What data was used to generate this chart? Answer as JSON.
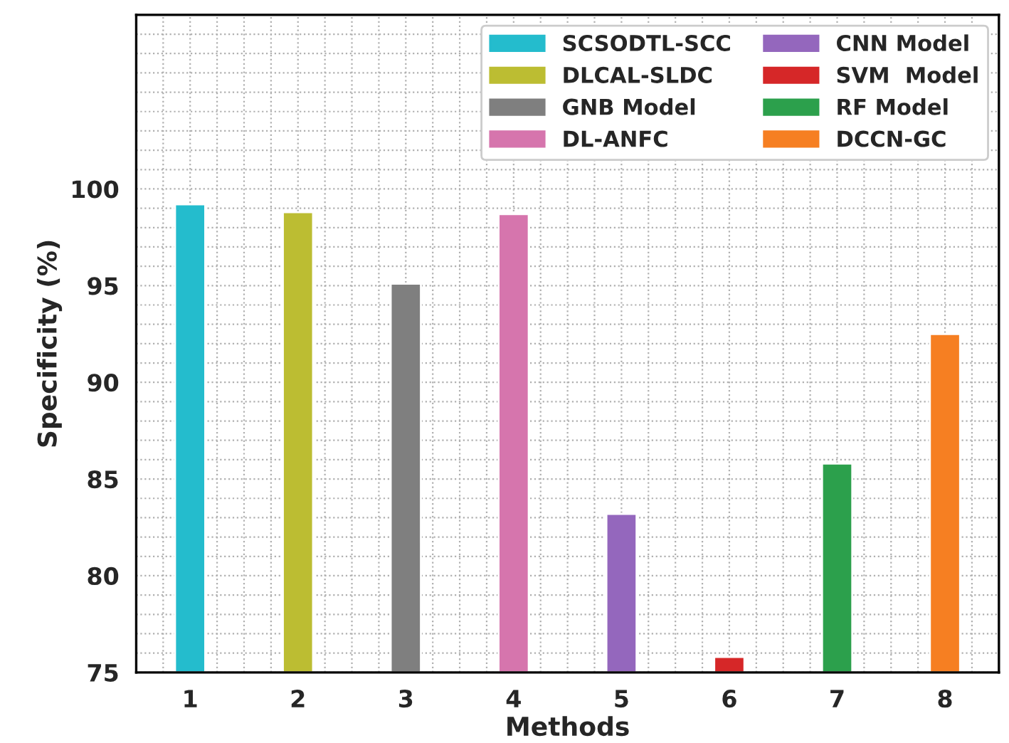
{
  "chart_data": {
    "type": "bar",
    "xlabel": "Methods",
    "ylabel": "Specificity (%)",
    "categories": [
      "1",
      "2",
      "3",
      "4",
      "5",
      "6",
      "7",
      "8"
    ],
    "series": [
      {
        "name": "SCSODTL-SCC",
        "color": "#24bccd",
        "values": [
          99.2,
          null,
          null,
          null,
          null,
          null,
          null,
          null
        ]
      },
      {
        "name": "DLCAL-SLDC",
        "color": "#bcbd32",
        "values": [
          null,
          98.8,
          null,
          null,
          null,
          null,
          null,
          null
        ]
      },
      {
        "name": "GNB Model",
        "color": "#7f7f7f",
        "values": [
          null,
          null,
          95.1,
          null,
          null,
          null,
          null,
          null
        ]
      },
      {
        "name": "DL-ANFC",
        "color": "#d675ad",
        "values": [
          null,
          null,
          null,
          98.7,
          null,
          null,
          null,
          null
        ]
      },
      {
        "name": "CNN Model",
        "color": "#9467bd",
        "values": [
          null,
          null,
          null,
          null,
          83.2,
          null,
          null,
          null
        ]
      },
      {
        "name": "SVM  Model",
        "color": "#d62728",
        "values": [
          null,
          null,
          null,
          null,
          null,
          75.8,
          null,
          null
        ]
      },
      {
        "name": "RF Model",
        "color": "#2ca04c",
        "values": [
          null,
          null,
          null,
          null,
          null,
          null,
          85.8,
          null
        ]
      },
      {
        "name": "DCCN-GC",
        "color": "#f67f22",
        "values": [
          null,
          null,
          null,
          null,
          null,
          null,
          null,
          92.5
        ]
      }
    ],
    "ylim": [
      75,
      109
    ],
    "yticks": [
      75,
      80,
      85,
      90,
      95,
      100
    ],
    "grid": true,
    "legend": "top right"
  }
}
